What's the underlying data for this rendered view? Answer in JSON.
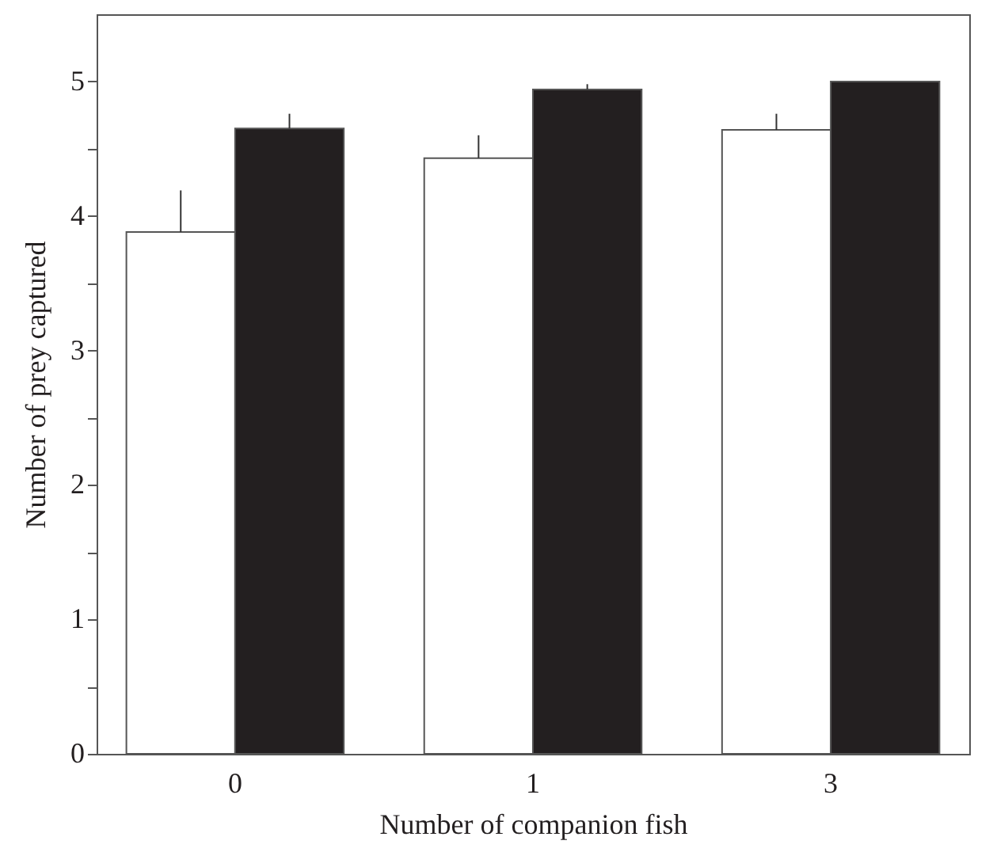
{
  "chart_data": {
    "type": "bar",
    "xlabel": "Number of companion fish",
    "ylabel": "Number of prey captured",
    "categories": [
      "0",
      "1",
      "3"
    ],
    "series": [
      {
        "color": "#ffffff",
        "values": [
          3.88,
          4.43,
          4.64
        ],
        "errors": [
          [
            3.88,
            4.19
          ],
          [
            4.43,
            4.6
          ],
          [
            4.64,
            4.76
          ]
        ]
      },
      {
        "color": "#231f20",
        "values": [
          4.65,
          4.94,
          5.0
        ],
        "errors": [
          [
            4.65,
            4.76
          ],
          [
            4.94,
            4.98
          ],
          null
        ]
      }
    ],
    "ylim": [
      0,
      5.5
    ],
    "yticks": [
      0,
      {
        "value": 0.5,
        "label": null
      },
      1,
      {
        "value": 1.5,
        "label": null
      },
      2,
      {
        "value": 2.5,
        "label": null
      },
      3,
      {
        "value": 3.5,
        "label": null
      },
      4,
      {
        "value": 4.5,
        "label": null
      },
      5
    ],
    "grid": false
  }
}
